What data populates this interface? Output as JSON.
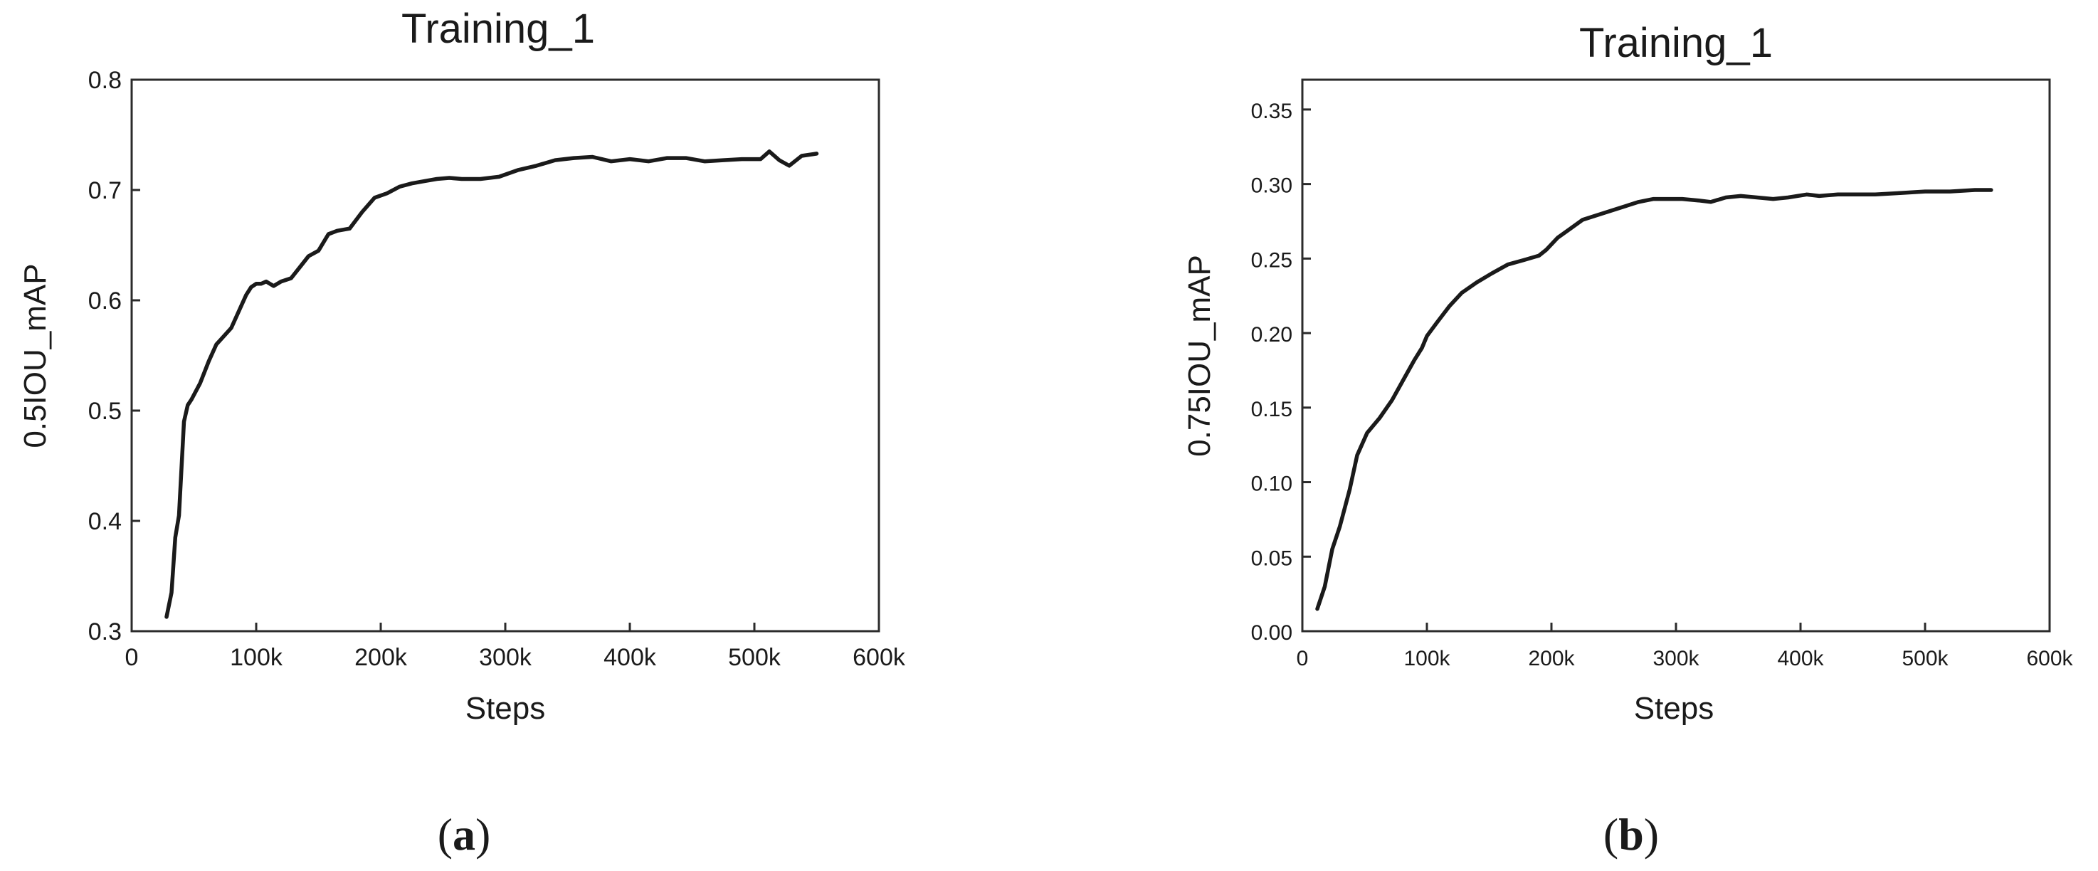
{
  "chart_data": [
    {
      "type": "line",
      "panel": "(a)",
      "panel_letter": "a",
      "title": "Training_1",
      "xlabel": "Steps",
      "ylabel": "0.5IOU_mAP",
      "xlim": [
        0,
        600000
      ],
      "ylim": [
        0.3,
        0.8
      ],
      "x_ticks": [
        0,
        100000,
        200000,
        300000,
        400000,
        500000,
        600000
      ],
      "x_tick_labels": [
        "0",
        "100k",
        "200k",
        "300k",
        "400k",
        "500k",
        "600k"
      ],
      "y_ticks": [
        0.3,
        0.4,
        0.5,
        0.6,
        0.7,
        0.8
      ],
      "y_tick_labels": [
        "0.3",
        "0.4",
        "0.5",
        "0.6",
        "0.7",
        "0.8"
      ],
      "grid": false,
      "legend": "none",
      "line_color": "#1a1a1a",
      "series": [
        {
          "x": [
            28000,
            32000,
            35000,
            38000,
            42000,
            45000,
            48000,
            55000,
            62000,
            68000,
            72000,
            80000,
            88000,
            92000,
            96000,
            100000,
            104000,
            108000,
            114000,
            120000,
            128000,
            135000,
            142000,
            150000,
            158000,
            165000,
            175000,
            185000,
            195000,
            205000,
            215000,
            225000,
            235000,
            245000,
            255000,
            265000,
            280000,
            295000,
            310000,
            325000,
            340000,
            355000,
            370000,
            385000,
            400000,
            415000,
            430000,
            445000,
            460000,
            475000,
            490000,
            505000,
            512000,
            520000,
            528000,
            538000,
            550000
          ],
          "y": [
            0.313,
            0.335,
            0.385,
            0.405,
            0.49,
            0.505,
            0.51,
            0.525,
            0.545,
            0.56,
            0.565,
            0.575,
            0.595,
            0.605,
            0.612,
            0.615,
            0.615,
            0.617,
            0.613,
            0.617,
            0.62,
            0.63,
            0.64,
            0.645,
            0.66,
            0.663,
            0.665,
            0.68,
            0.693,
            0.697,
            0.703,
            0.706,
            0.708,
            0.71,
            0.711,
            0.71,
            0.71,
            0.712,
            0.718,
            0.722,
            0.727,
            0.729,
            0.73,
            0.726,
            0.728,
            0.726,
            0.729,
            0.729,
            0.726,
            0.727,
            0.728,
            0.728,
            0.735,
            0.727,
            0.722,
            0.731,
            0.733
          ]
        }
      ]
    },
    {
      "type": "line",
      "panel": "(b)",
      "panel_letter": "b",
      "title": "Training_1",
      "xlabel": "Steps",
      "ylabel": "0.75IOU_mAP",
      "xlim": [
        0,
        600000
      ],
      "ylim": [
        0.0,
        0.37
      ],
      "x_ticks": [
        0,
        100000,
        200000,
        300000,
        400000,
        500000,
        600000
      ],
      "x_tick_labels": [
        "0",
        "100k",
        "200k",
        "300k",
        "400k",
        "500k",
        "600k"
      ],
      "y_ticks": [
        0.0,
        0.05,
        0.1,
        0.15,
        0.2,
        0.25,
        0.3,
        0.35
      ],
      "y_tick_labels": [
        "0.00",
        "0.05",
        "0.10",
        "0.15",
        "0.20",
        "0.25",
        "0.30",
        "0.35"
      ],
      "grid": false,
      "legend": "none",
      "line_color": "#1a1a1a",
      "series": [
        {
          "x": [
            12000,
            18000,
            24000,
            30000,
            38000,
            44000,
            52000,
            62000,
            72000,
            82000,
            90000,
            96000,
            100000,
            108000,
            118000,
            128000,
            140000,
            152000,
            165000,
            178000,
            190000,
            196000,
            205000,
            215000,
            225000,
            240000,
            255000,
            270000,
            282000,
            295000,
            305000,
            318000,
            328000,
            340000,
            352000,
            365000,
            378000,
            390000,
            405000,
            415000,
            430000,
            445000,
            460000,
            480000,
            500000,
            520000,
            540000,
            553000
          ],
          "y": [
            0.015,
            0.03,
            0.055,
            0.07,
            0.095,
            0.118,
            0.133,
            0.143,
            0.155,
            0.17,
            0.182,
            0.19,
            0.198,
            0.207,
            0.218,
            0.227,
            0.234,
            0.24,
            0.246,
            0.249,
            0.252,
            0.256,
            0.264,
            0.27,
            0.276,
            0.28,
            0.284,
            0.288,
            0.29,
            0.29,
            0.29,
            0.289,
            0.288,
            0.291,
            0.292,
            0.291,
            0.29,
            0.291,
            0.293,
            0.292,
            0.293,
            0.293,
            0.293,
            0.294,
            0.295,
            0.295,
            0.296,
            0.296
          ]
        }
      ]
    }
  ]
}
